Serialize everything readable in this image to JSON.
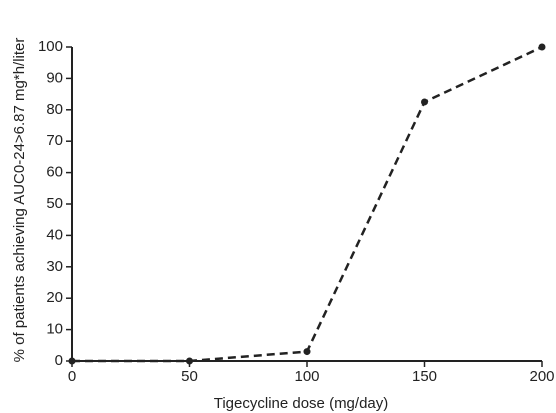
{
  "chart_data": {
    "type": "line",
    "xlabel": "Tigecycline dose (mg/day)",
    "ylabel": "% of patients achieving AUC0-24>6.87 mg*h/liter",
    "x": [
      0,
      50,
      100,
      150,
      200
    ],
    "series": [
      {
        "color": "#222222",
        "values": [
          0,
          0,
          3,
          82.5,
          100
        ]
      }
    ],
    "xlim": [
      0,
      200
    ],
    "xticks": [
      0,
      50,
      100,
      150,
      200
    ],
    "ylim": [
      0,
      100
    ],
    "yticks": [
      0,
      10,
      20,
      30,
      40,
      50,
      60,
      70,
      80,
      90,
      100
    ]
  }
}
